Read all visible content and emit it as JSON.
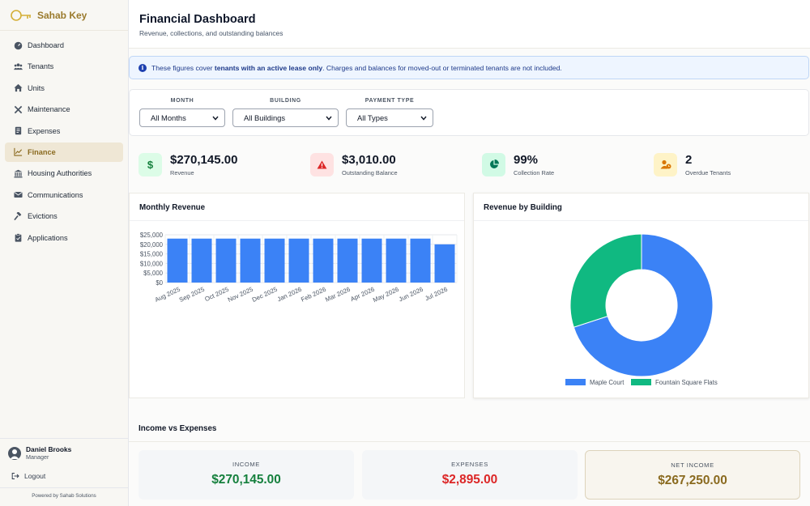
{
  "brand": {
    "name": "Sahab Key"
  },
  "sidebar": {
    "items": [
      {
        "label": "Dashboard",
        "icon": "dashboard-icon"
      },
      {
        "label": "Tenants",
        "icon": "users-icon"
      },
      {
        "label": "Units",
        "icon": "home-icon"
      },
      {
        "label": "Maintenance",
        "icon": "tools-icon"
      },
      {
        "label": "Expenses",
        "icon": "receipt-icon"
      },
      {
        "label": "Finance",
        "icon": "chart-line-icon",
        "active": true
      },
      {
        "label": "Housing Authorities",
        "icon": "bank-icon"
      },
      {
        "label": "Communications",
        "icon": "envelope-icon"
      },
      {
        "label": "Evictions",
        "icon": "gavel-icon"
      },
      {
        "label": "Applications",
        "icon": "clipboard-icon"
      }
    ],
    "user": {
      "name": "Daniel Brooks",
      "role": "Manager"
    },
    "logout_label": "Logout",
    "powered_by": "Powered by Sahab Solutions"
  },
  "header": {
    "title": "Financial Dashboard",
    "subtitle": "Revenue, collections, and outstanding balances"
  },
  "notice": {
    "before": "These figures cover ",
    "bold": "tenants with an active lease only",
    "after": ". Charges and balances for moved-out or terminated tenants are not included."
  },
  "filters": {
    "month": {
      "label": "MONTH",
      "value": "All Months"
    },
    "building": {
      "label": "BUILDING",
      "value": "All Buildings"
    },
    "payment_type": {
      "label": "PAYMENT TYPE",
      "value": "All Types"
    }
  },
  "kpis": [
    {
      "value": "$270,145.00",
      "label": "Revenue",
      "icon": "dollar-icon",
      "bg": "#dcfce7",
      "fg": "#15803d",
      "glyph": "$"
    },
    {
      "value": "$3,010.00",
      "label": "Outstanding Balance",
      "icon": "warning-icon",
      "bg": "#fee2e2",
      "fg": "#dc2626",
      "glyph": ""
    },
    {
      "value": "99%",
      "label": "Collection Rate",
      "icon": "pie-icon",
      "bg": "#d1fae5",
      "fg": "#047857",
      "glyph": ""
    },
    {
      "value": "2",
      "label": "Overdue Tenants",
      "icon": "user-clock-icon",
      "bg": "#fef3c7",
      "fg": "#b45309",
      "glyph": ""
    }
  ],
  "monthly_revenue": {
    "title": "Monthly Revenue"
  },
  "revenue_by_building": {
    "title": "Revenue by Building"
  },
  "chart_data": [
    {
      "type": "bar",
      "title": "Monthly Revenue",
      "categories": [
        "Aug 2025",
        "Sep 2025",
        "Oct 2025",
        "Nov 2025",
        "Dec 2025",
        "Jan 2026",
        "Feb 2026",
        "Mar 2026",
        "Apr 2026",
        "May 2026",
        "Jun 2026",
        "Jul 2026"
      ],
      "values": [
        23000,
        23000,
        23000,
        23000,
        23000,
        23000,
        23000,
        23000,
        23000,
        23000,
        23000,
        20000
      ],
      "yticks": [
        "$0",
        "$5,000",
        "$10,000",
        "$15,000",
        "$20,000",
        "$25,000"
      ],
      "ylim": [
        0,
        25000
      ],
      "color": "#3b82f6",
      "grid": true
    },
    {
      "type": "pie",
      "title": "Revenue by Building",
      "donut": true,
      "labels": [
        "Maple Court",
        "Fountain Square Flats"
      ],
      "values": [
        70,
        30
      ],
      "colors": [
        "#3b82f6",
        "#10b981"
      ],
      "legend": "bottom"
    }
  ],
  "income_vs_expenses": {
    "title": "Income vs Expenses",
    "income": {
      "label": "INCOME",
      "value": "$270,145.00",
      "color": "#15803d"
    },
    "expenses": {
      "label": "EXPENSES",
      "value": "$2,895.00",
      "color": "#dc2626"
    },
    "net": {
      "label": "NET INCOME",
      "value": "$267,250.00",
      "color": "#8a6a1f"
    }
  }
}
